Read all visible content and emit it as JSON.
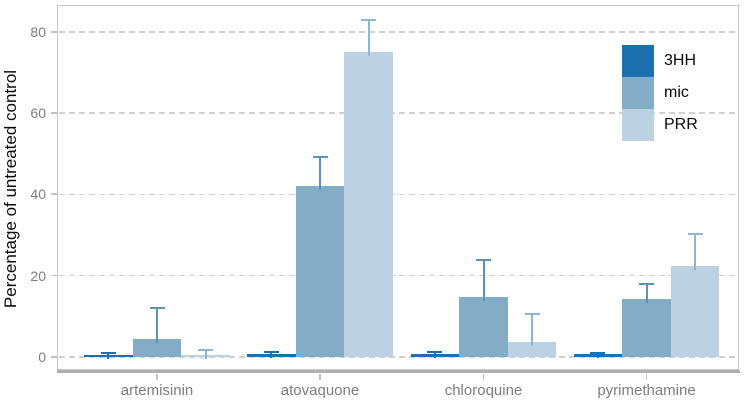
{
  "chart_data": {
    "type": "bar",
    "title": "",
    "xlabel": "",
    "ylabel": "Percentage of untreated control",
    "categories": [
      "artemisinin",
      "atovaquone",
      "chloroquine",
      "pyrimethamine"
    ],
    "series": [
      {
        "name": "3HH",
        "color": "#1b70ad",
        "error_color": "#1b70ad",
        "values": [
          0.5,
          0.7,
          0.8,
          0.6
        ],
        "error_tops": [
          0.9,
          1.1,
          1.2,
          1.0
        ]
      },
      {
        "name": "mic",
        "color": "#83acc6",
        "error_color": "#5d92b8",
        "values": [
          4.3,
          42.0,
          14.8,
          14.2
        ],
        "error_tops": [
          11.9,
          49.1,
          23.8,
          17.8
        ]
      },
      {
        "name": "PRR",
        "color": "#bcd2e2",
        "error_color": "#8fb6d0",
        "values": [
          0.5,
          75.0,
          3.7,
          22.4
        ],
        "error_tops": [
          1.6,
          82.9,
          10.5,
          30.3
        ]
      }
    ],
    "yticks": [
      0,
      20,
      40,
      60,
      80
    ],
    "ylim": [
      -3.5,
      86.6
    ],
    "grid": "horizontal dashed major gridlines",
    "legend_position": "inside top-right",
    "legend": [
      "3HH",
      "mic",
      "PRR"
    ]
  },
  "colors": {
    "background": "#ffffff",
    "panel_border": "#c9c9c9",
    "axis_line": "#b0b0b0",
    "gridline": "#d0d0d0",
    "tick": "#c2c2c2",
    "tick_label": "#7e7e7e",
    "axis_title": "#0a0a0a",
    "legend_text": "#0a0a0a"
  }
}
